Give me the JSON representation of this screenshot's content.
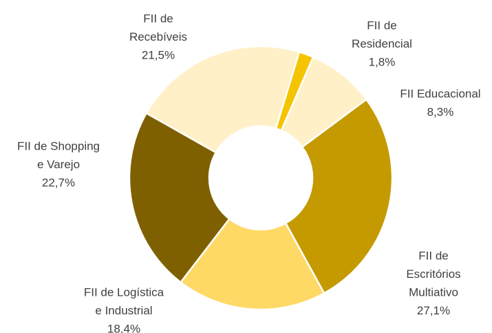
{
  "chart_data": {
    "type": "donut",
    "categories": [
      [
        "FII de",
        "Residencial"
      ],
      [
        "FII Educacional"
      ],
      [
        "FII de",
        "Escritórios",
        "Multiativo"
      ],
      [
        "FII de Logística",
        "e Industrial"
      ],
      [
        "FII de Shopping",
        "e Varejo"
      ],
      [
        "FII de",
        "Recebíveis"
      ]
    ],
    "values": [
      1.8,
      8.3,
      27.1,
      18.4,
      22.7,
      21.5
    ],
    "value_labels": [
      "1,8%",
      "8,3%",
      "27,1%",
      "18,4%",
      "22,7%",
      "21,5%"
    ],
    "colors": [
      "#f5c400",
      "#fff0c8",
      "#c49a00",
      "#ffd966",
      "#7f6000",
      "#fff0c8"
    ]
  }
}
